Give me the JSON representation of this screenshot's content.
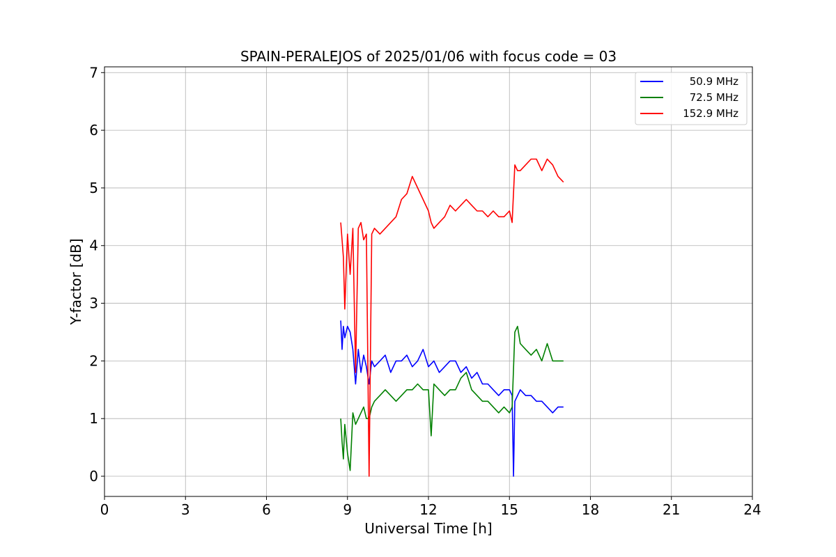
{
  "chart_data": {
    "type": "line",
    "title": "SPAIN-PERALEJOS of 2025/01/06 with focus code = 03",
    "xlabel": "Universal Time [h]",
    "ylabel": "Y-factor [dB]",
    "xlim": [
      0,
      24
    ],
    "ylim": [
      -0.35,
      7.1
    ],
    "xticks": [
      0,
      3,
      6,
      9,
      12,
      15,
      18,
      21,
      24
    ],
    "yticks": [
      0,
      1,
      2,
      3,
      4,
      5,
      6,
      7
    ],
    "grid": true,
    "legend_position": "top-right",
    "series": [
      {
        "name": "50.9 MHz",
        "color": "#0000ff",
        "x": [
          8.75,
          8.8,
          8.85,
          8.9,
          9.0,
          9.1,
          9.2,
          9.3,
          9.4,
          9.5,
          9.6,
          9.7,
          9.8,
          9.9,
          10.0,
          10.2,
          10.4,
          10.6,
          10.8,
          11.0,
          11.2,
          11.4,
          11.6,
          11.8,
          12.0,
          12.2,
          12.4,
          12.6,
          12.8,
          13.0,
          13.2,
          13.4,
          13.6,
          13.8,
          14.0,
          14.2,
          14.4,
          14.6,
          14.8,
          15.0,
          15.1,
          15.15,
          15.2,
          15.3,
          15.4,
          15.6,
          15.8,
          16.0,
          16.2,
          16.4,
          16.6,
          16.8,
          17.0
        ],
        "y": [
          2.7,
          2.2,
          2.6,
          2.4,
          2.6,
          2.5,
          2.2,
          1.6,
          2.2,
          1.8,
          2.1,
          1.9,
          1.6,
          2.0,
          1.9,
          2.0,
          2.1,
          1.8,
          2.0,
          2.0,
          2.1,
          1.9,
          2.0,
          2.2,
          1.9,
          2.0,
          1.8,
          1.9,
          2.0,
          2.0,
          1.8,
          1.9,
          1.7,
          1.8,
          1.6,
          1.6,
          1.5,
          1.4,
          1.5,
          1.5,
          1.4,
          0.0,
          1.3,
          1.4,
          1.5,
          1.4,
          1.4,
          1.3,
          1.3,
          1.2,
          1.1,
          1.2,
          1.2
        ]
      },
      {
        "name": "72.5 MHz",
        "color": "#008000",
        "x": [
          8.75,
          8.8,
          8.85,
          8.9,
          9.0,
          9.1,
          9.2,
          9.3,
          9.4,
          9.5,
          9.6,
          9.7,
          9.8,
          9.9,
          10.0,
          10.2,
          10.4,
          10.6,
          10.8,
          11.0,
          11.2,
          11.4,
          11.6,
          11.8,
          12.0,
          12.1,
          12.2,
          12.4,
          12.6,
          12.8,
          13.0,
          13.2,
          13.4,
          13.6,
          13.8,
          14.0,
          14.2,
          14.4,
          14.6,
          14.8,
          15.0,
          15.1,
          15.2,
          15.3,
          15.4,
          15.6,
          15.8,
          16.0,
          16.2,
          16.4,
          16.6,
          16.8,
          17.0
        ],
        "y": [
          1.0,
          0.6,
          0.3,
          0.9,
          0.4,
          0.1,
          1.1,
          0.9,
          1.0,
          1.1,
          1.2,
          1.0,
          1.0,
          1.2,
          1.3,
          1.4,
          1.5,
          1.4,
          1.3,
          1.4,
          1.5,
          1.5,
          1.6,
          1.5,
          1.5,
          0.7,
          1.6,
          1.5,
          1.4,
          1.5,
          1.5,
          1.7,
          1.8,
          1.5,
          1.4,
          1.3,
          1.3,
          1.2,
          1.1,
          1.2,
          1.1,
          1.2,
          2.5,
          2.6,
          2.3,
          2.2,
          2.1,
          2.2,
          2.0,
          2.3,
          2.0,
          2.0,
          2.0
        ]
      },
      {
        "name": "152.9 MHz",
        "color": "#ff0000",
        "x": [
          8.75,
          8.8,
          8.85,
          8.9,
          9.0,
          9.1,
          9.2,
          9.3,
          9.4,
          9.5,
          9.6,
          9.7,
          9.8,
          9.9,
          10.0,
          10.2,
          10.4,
          10.6,
          10.8,
          11.0,
          11.2,
          11.4,
          11.6,
          11.8,
          12.0,
          12.1,
          12.2,
          12.4,
          12.6,
          12.8,
          13.0,
          13.2,
          13.4,
          13.6,
          13.8,
          14.0,
          14.2,
          14.4,
          14.6,
          14.8,
          15.0,
          15.1,
          15.2,
          15.3,
          15.4,
          15.6,
          15.8,
          16.0,
          16.2,
          16.4,
          16.6,
          16.8,
          17.0
        ],
        "y": [
          4.4,
          4.1,
          3.8,
          2.9,
          4.2,
          3.5,
          4.3,
          1.8,
          4.3,
          4.4,
          4.1,
          4.2,
          0.0,
          4.2,
          4.3,
          4.2,
          4.3,
          4.4,
          4.5,
          4.8,
          4.9,
          5.2,
          5.0,
          4.8,
          4.6,
          4.4,
          4.3,
          4.4,
          4.5,
          4.7,
          4.6,
          4.7,
          4.8,
          4.7,
          4.6,
          4.6,
          4.5,
          4.6,
          4.5,
          4.5,
          4.6,
          4.4,
          5.4,
          5.3,
          5.3,
          5.4,
          5.5,
          5.5,
          5.3,
          5.5,
          5.4,
          5.2,
          5.1
        ]
      }
    ]
  }
}
